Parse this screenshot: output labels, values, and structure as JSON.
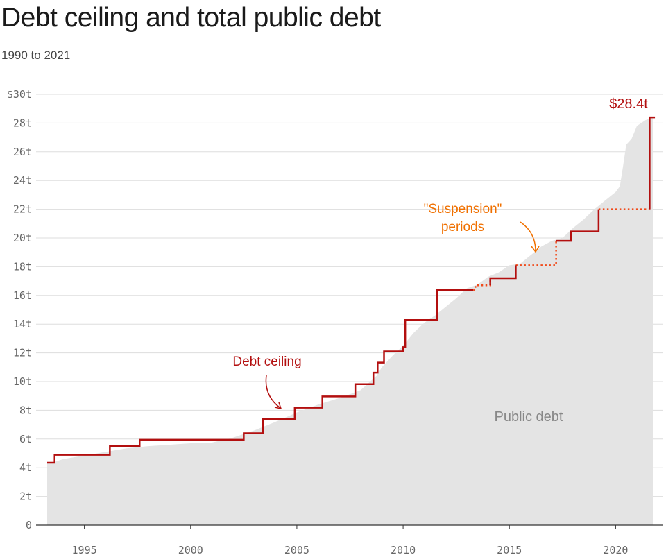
{
  "title": "Debt ceiling and total public debt",
  "subtitle": "1990 to 2021",
  "colors": {
    "ceiling": "#b30f0f",
    "suspension": "#f04a1a",
    "debt_area": "#e4e4e4",
    "orange_text": "#f07000",
    "grid": "#dddddd"
  },
  "chart_data": {
    "type": "area",
    "title": "Debt ceiling and total public debt",
    "subtitle": "1990 to 2021",
    "xlabel": "",
    "ylabel": "",
    "xlim": [
      1993.0,
      2022.25
    ],
    "ylim": [
      0,
      30
    ],
    "x_ticks": [
      1995,
      2000,
      2005,
      2010,
      2015,
      2020
    ],
    "x_tick_labels": [
      "1995",
      "2000",
      "2005",
      "2010",
      "2015",
      "2020"
    ],
    "y_ticks": [
      0,
      2,
      4,
      6,
      8,
      10,
      12,
      14,
      16,
      18,
      20,
      22,
      24,
      26,
      28,
      30
    ],
    "y_tick_labels": [
      "0",
      "2t",
      "4t",
      "6t",
      "8t",
      "10t",
      "12t",
      "14t",
      "16t",
      "18t",
      "20t",
      "22t",
      "24t",
      "26t",
      "28t",
      "$30t"
    ],
    "grid": true,
    "series": [
      {
        "label": "Public debt",
        "kind": "area",
        "points": [
          [
            1993.25,
            4.3
          ],
          [
            1993.6,
            4.4
          ],
          [
            1994,
            4.6
          ],
          [
            1995,
            4.85
          ],
          [
            1996,
            5.1
          ],
          [
            1997,
            5.35
          ],
          [
            1998,
            5.5
          ],
          [
            1999,
            5.6
          ],
          [
            2000,
            5.7
          ],
          [
            2001,
            5.75
          ],
          [
            2002,
            6.1
          ],
          [
            2003,
            6.6
          ],
          [
            2004,
            7.2
          ],
          [
            2005,
            7.85
          ],
          [
            2006,
            8.4
          ],
          [
            2007,
            8.85
          ],
          [
            2008,
            9.4
          ],
          [
            2008.75,
            10.4
          ],
          [
            2009,
            11.0
          ],
          [
            2009.5,
            11.8
          ],
          [
            2010,
            12.5
          ],
          [
            2010.5,
            13.4
          ],
          [
            2011,
            14.1
          ],
          [
            2011.5,
            14.6
          ],
          [
            2012,
            15.2
          ],
          [
            2012.5,
            15.8
          ],
          [
            2013,
            16.5
          ],
          [
            2013.5,
            16.75
          ],
          [
            2014,
            17.3
          ],
          [
            2014.5,
            17.6
          ],
          [
            2015,
            18.1
          ],
          [
            2015.5,
            18.2
          ],
          [
            2016,
            18.8
          ],
          [
            2016.5,
            19.4
          ],
          [
            2017,
            19.8
          ],
          [
            2017.5,
            20.0
          ],
          [
            2018,
            20.7
          ],
          [
            2018.5,
            21.3
          ],
          [
            2019,
            22.0
          ],
          [
            2019.5,
            22.6
          ],
          [
            2020,
            23.2
          ],
          [
            2020.2,
            23.6
          ],
          [
            2020.35,
            25.0
          ],
          [
            2020.5,
            26.5
          ],
          [
            2020.75,
            26.9
          ],
          [
            2021,
            27.8
          ],
          [
            2021.4,
            28.2
          ],
          [
            2021.75,
            28.4
          ]
        ]
      },
      {
        "label": "Debt ceiling",
        "kind": "step",
        "points": [
          [
            1993.25,
            4.35
          ],
          [
            1993.6,
            4.35
          ],
          [
            1993.6,
            4.9
          ],
          [
            1996.2,
            4.9
          ],
          [
            1996.2,
            5.5
          ],
          [
            1997.6,
            5.5
          ],
          [
            1997.6,
            5.95
          ],
          [
            2002.5,
            5.95
          ],
          [
            2002.5,
            6.4
          ],
          [
            2003.4,
            6.4
          ],
          [
            2003.4,
            7.38
          ],
          [
            2004.9,
            7.38
          ],
          [
            2004.9,
            8.18
          ],
          [
            2006.2,
            8.18
          ],
          [
            2006.2,
            8.97
          ],
          [
            2007.75,
            8.97
          ],
          [
            2007.75,
            9.82
          ],
          [
            2008.6,
            9.82
          ],
          [
            2008.6,
            10.62
          ],
          [
            2008.8,
            10.62
          ],
          [
            2008.8,
            11.32
          ],
          [
            2009.1,
            11.32
          ],
          [
            2009.1,
            12.1
          ],
          [
            2010.0,
            12.1
          ],
          [
            2010.0,
            12.4
          ],
          [
            2010.1,
            12.4
          ],
          [
            2010.1,
            14.29
          ],
          [
            2011.6,
            14.29
          ],
          [
            2011.6,
            16.39
          ],
          [
            2013.3,
            16.39
          ]
        ]
      },
      {
        "label": "\"Suspension\" periods",
        "kind": "dotted",
        "segments": [
          [
            [
              2013.3,
              16.39
            ],
            [
              2013.4,
              16.39
            ],
            [
              2013.4,
              16.7
            ],
            [
              2014.1,
              16.7
            ],
            [
              2014.1,
              17.2
            ]
          ],
          [
            [
              2015.3,
              18.1
            ],
            [
              2017.2,
              18.1
            ],
            [
              2017.2,
              19.8
            ]
          ],
          [
            [
              2019.2,
              22.0
            ],
            [
              2021.6,
              22.0
            ]
          ]
        ]
      },
      {
        "label": "Debt ceiling (post-suspension)",
        "kind": "step",
        "segments": [
          [
            [
              2014.1,
              16.7
            ],
            [
              2014.1,
              17.2
            ],
            [
              2015.3,
              17.2
            ],
            [
              2015.3,
              18.1
            ]
          ],
          [
            [
              2017.2,
              19.8
            ],
            [
              2017.9,
              19.8
            ],
            [
              2017.9,
              20.45
            ],
            [
              2019.2,
              20.45
            ],
            [
              2019.2,
              22.0
            ]
          ],
          [
            [
              2021.6,
              22.0
            ],
            [
              2021.6,
              28.4
            ],
            [
              2021.85,
              28.4
            ]
          ]
        ]
      }
    ],
    "annotations": {
      "ceiling_label": "Debt ceiling",
      "suspension_label_line1": "\"Suspension\"",
      "suspension_label_line2": "periods",
      "debt_label": "Public debt",
      "end_value": "$28.4t"
    }
  }
}
